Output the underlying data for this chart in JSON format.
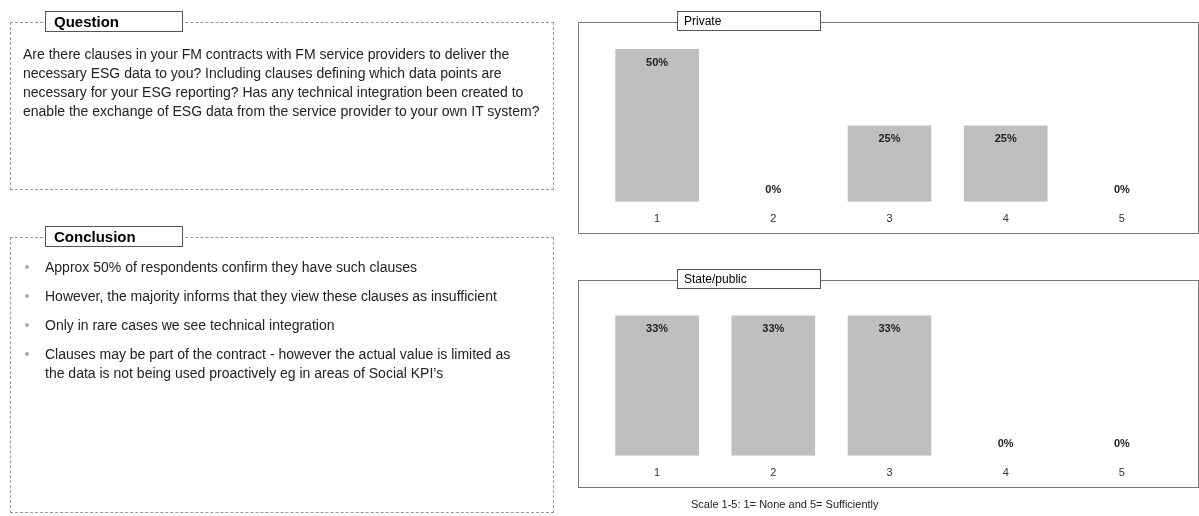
{
  "chart_data": [
    {
      "type": "other",
      "title": "Question",
      "annotations": [
        "Are there clauses in your FM contracts with FM service providers to deliver the necessary ESG data to you? Including clauses defining which data points are necessary for your ESG reporting? Has any technical integration been created to enable the exchange of ESG data from the service provider to your own IT system?"
      ]
    },
    {
      "type": "other",
      "title": "Conclusion",
      "annotations": [
        "Approx 50% of respondents confirm they have such clauses",
        "However, the majority informs that they view these clauses as insufficient",
        "Only in rare cases we see technical integration",
        "Clauses may be part of the contract - however the actual value is limited as the data is not being used proactively eg in areas of Social KPI’s"
      ]
    },
    {
      "type": "bar",
      "title": "Private",
      "categories": [
        "1",
        "2",
        "3",
        "4",
        "5"
      ],
      "values": [
        50,
        0,
        25,
        25,
        0
      ],
      "value_labels": [
        "50%",
        "0%",
        "25%",
        "25%",
        "0%"
      ],
      "color": "#bfbfbf"
    },
    {
      "type": "bar",
      "title": "State/public",
      "categories": [
        "1",
        "2",
        "3",
        "4",
        "5"
      ],
      "values": [
        33,
        33,
        33,
        0,
        0
      ],
      "value_labels": [
        "33%",
        "33%",
        "33%",
        "0%",
        "0%"
      ],
      "color": "#bfbfbf",
      "annotations": [
        "Scale 1-5: 1= None and 5= Sufficiently"
      ]
    }
  ]
}
